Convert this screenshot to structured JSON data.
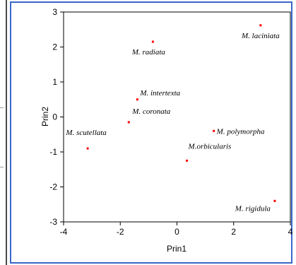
{
  "chart_data": {
    "type": "scatter",
    "title": "",
    "xlabel": "Prin1",
    "ylabel": "Prin2",
    "xlim": [
      -4,
      4
    ],
    "ylim": [
      -3,
      3
    ],
    "xticks": [
      "-4",
      "-2",
      "0",
      "2",
      "4"
    ],
    "yticks": [
      "3",
      "2",
      "1",
      "0",
      "-1",
      "-2",
      "-3"
    ],
    "point_color": "#ff0000",
    "points": [
      {
        "label": "M. radiata",
        "x": -0.85,
        "y": 2.15
      },
      {
        "label": "M. laciniata",
        "x": 2.95,
        "y": 2.62
      },
      {
        "label": "M. intertexta",
        "x": -1.4,
        "y": 0.5
      },
      {
        "label": "M. coronata",
        "x": -1.7,
        "y": -0.15
      },
      {
        "label": "M. scutellata",
        "x": -3.15,
        "y": -0.9
      },
      {
        "label": "M. polymorpha",
        "x": 1.3,
        "y": -0.4
      },
      {
        "label": "M.orbicularis",
        "x": 0.35,
        "y": -1.25
      },
      {
        "label": "M. rigidula",
        "x": 3.45,
        "y": -2.4
      }
    ]
  }
}
